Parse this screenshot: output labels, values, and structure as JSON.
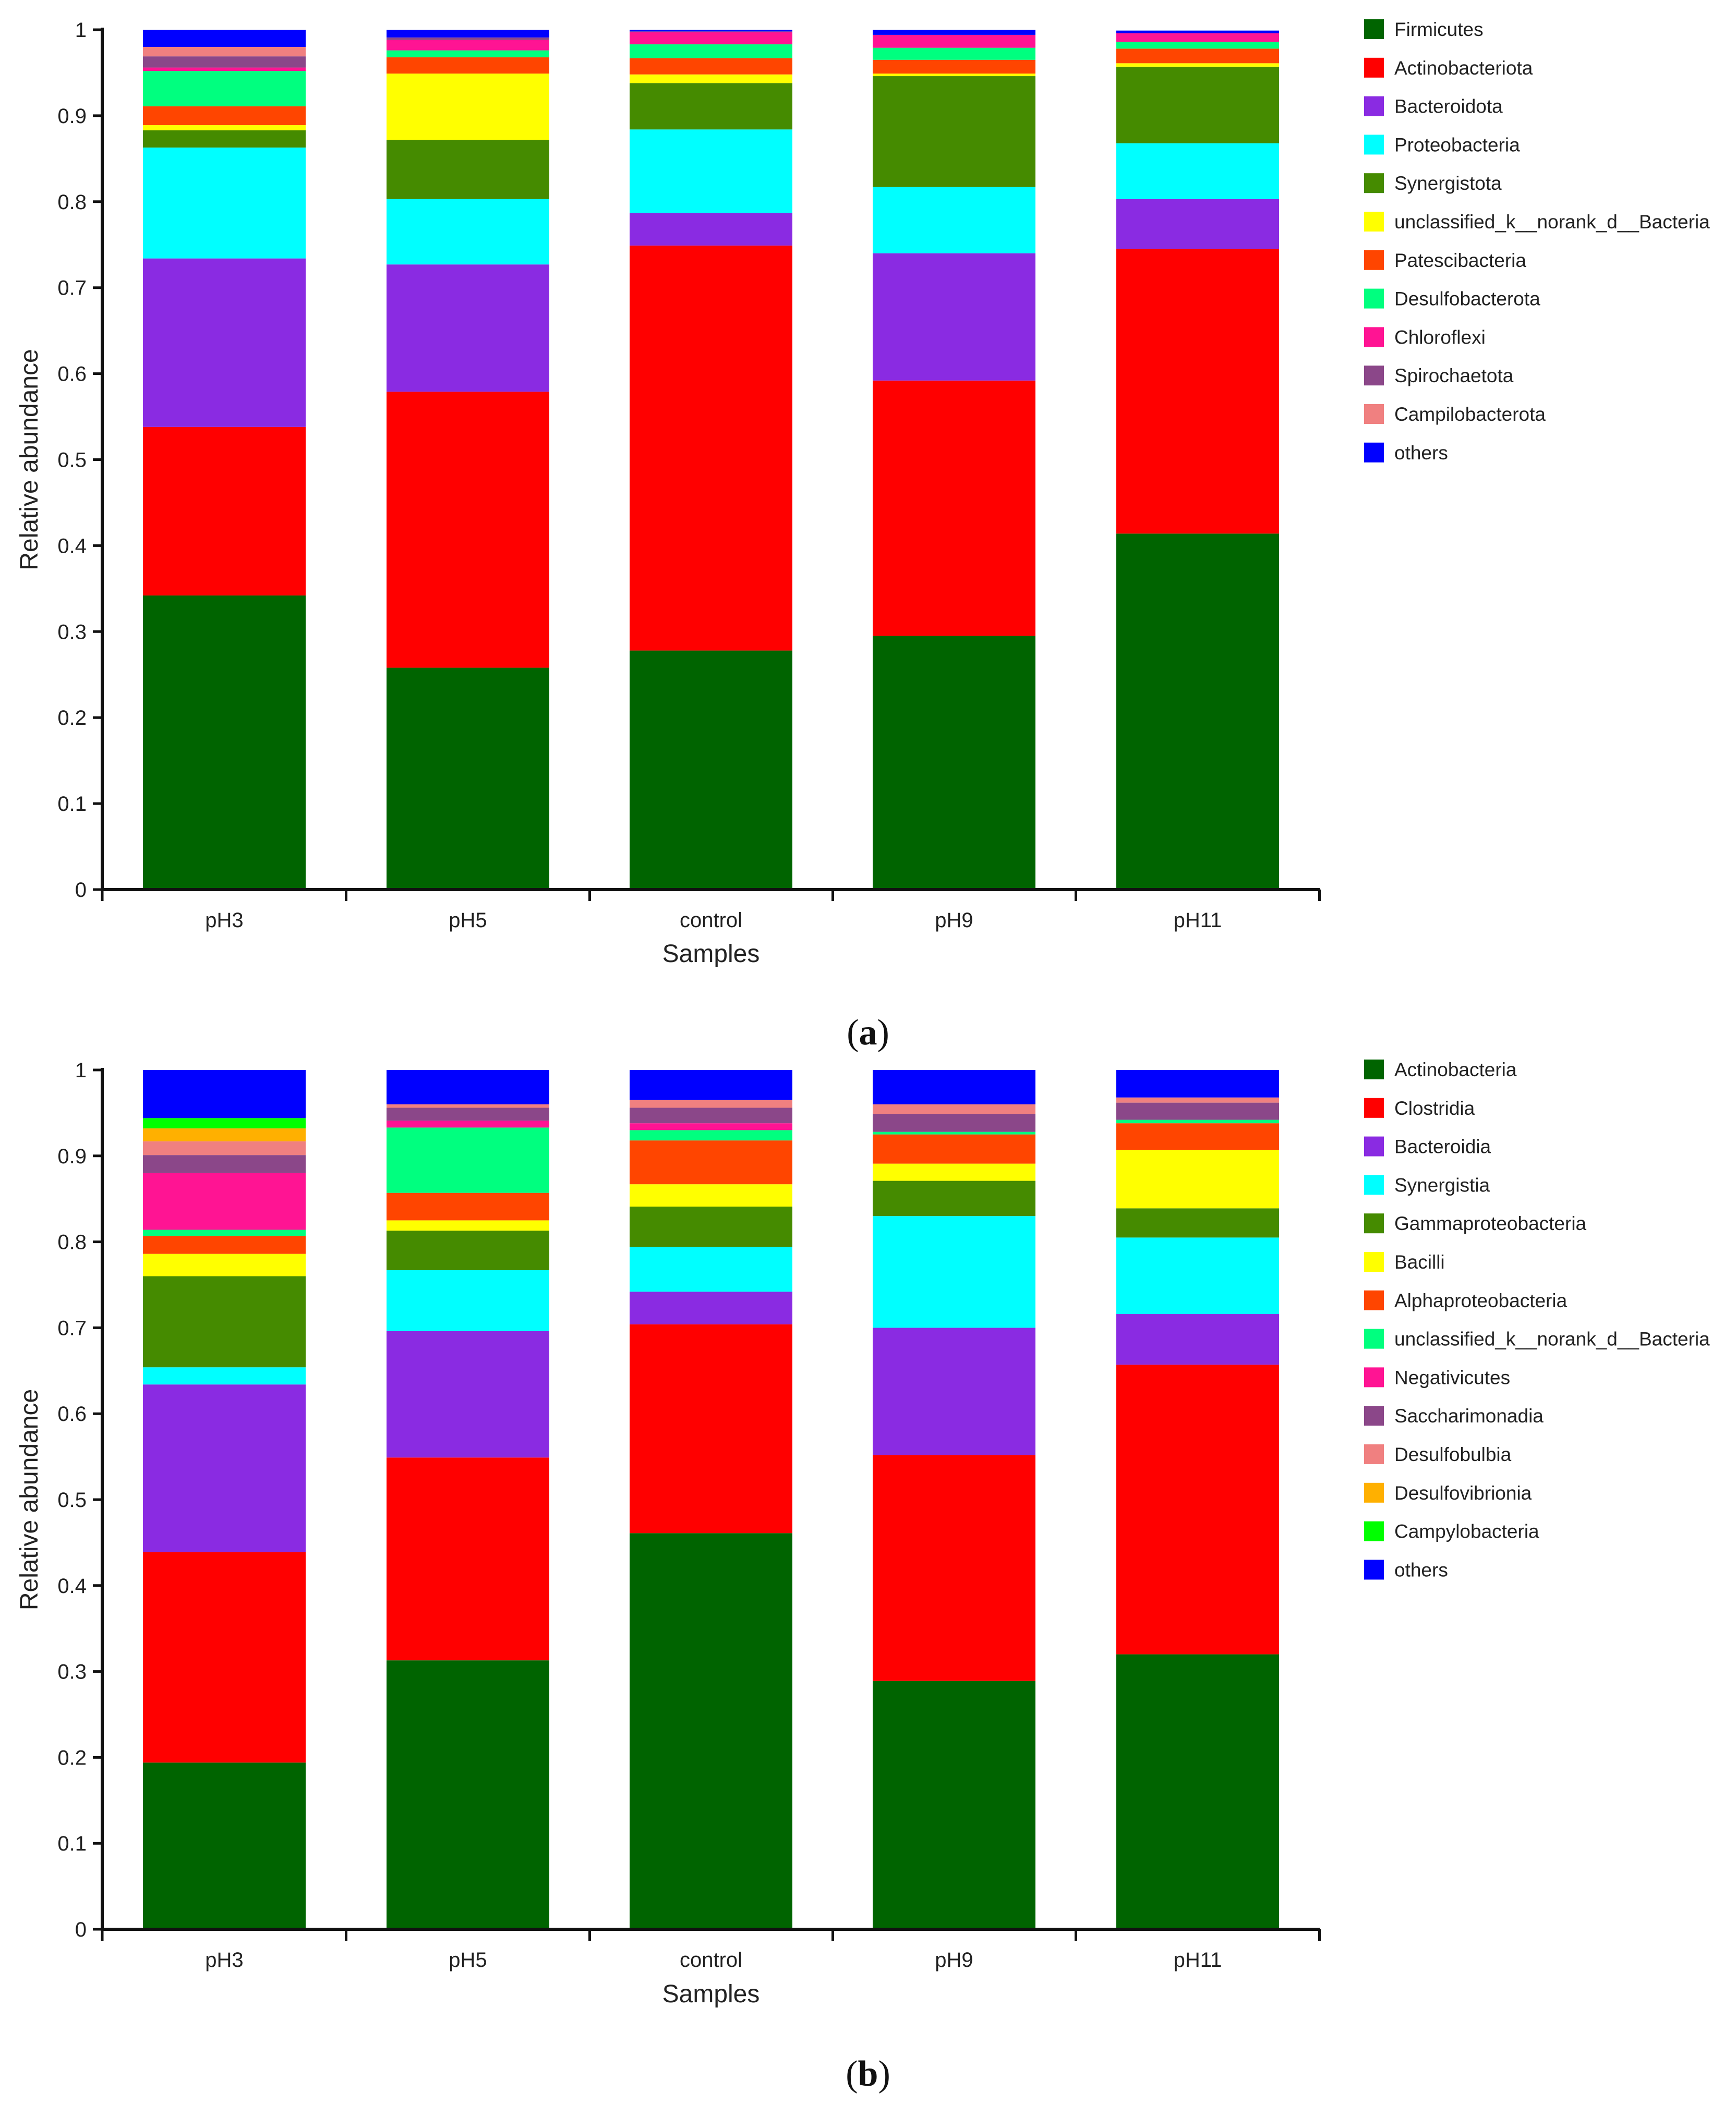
{
  "chart_data": [
    {
      "type": "bar",
      "stacked": true,
      "panel_label": "a",
      "title": "",
      "xlabel": "Samples",
      "ylabel": "Relative abundance",
      "ylim": [
        0,
        1
      ],
      "yticks": [
        "0",
        "0.1",
        "0.2",
        "0.3",
        "0.4",
        "0.5",
        "0.6",
        "0.7",
        "0.8",
        "0.9",
        "1"
      ],
      "categories": [
        "pH3",
        "pH5",
        "control",
        "pH9",
        "pH11"
      ],
      "legend_position": "right",
      "series": [
        {
          "name": "Firmicutes",
          "color": "#006400",
          "values": [
            0.342,
            0.258,
            0.278,
            0.295,
            0.414
          ]
        },
        {
          "name": "Actinobacteriota",
          "color": "#ff0000",
          "values": [
            0.196,
            0.321,
            0.471,
            0.297,
            0.331
          ]
        },
        {
          "name": "Bacteroidota",
          "color": "#8a2be2",
          "values": [
            0.196,
            0.148,
            0.038,
            0.148,
            0.058
          ]
        },
        {
          "name": "Proteobacteria",
          "color": "#00ffff",
          "values": [
            0.129,
            0.076,
            0.097,
            0.077,
            0.065
          ]
        },
        {
          "name": "Synergistota",
          "color": "#458b00",
          "values": [
            0.02,
            0.069,
            0.054,
            0.129,
            0.089
          ]
        },
        {
          "name": "unclassified_k__norank_d__Bacteria",
          "color": "#ffff00",
          "values": [
            0.006,
            0.077,
            0.01,
            0.003,
            0.004
          ]
        },
        {
          "name": "Patescibacteria",
          "color": "#ff4500",
          "values": [
            0.022,
            0.019,
            0.019,
            0.016,
            0.017
          ]
        },
        {
          "name": "Desulfobacterota",
          "color": "#00ff7f",
          "values": [
            0.041,
            0.008,
            0.016,
            0.014,
            0.008
          ]
        },
        {
          "name": "Chloroflexi",
          "color": "#ff1493",
          "values": [
            0.004,
            0.012,
            0.014,
            0.015,
            0.01
          ]
        },
        {
          "name": "Spirochaetota",
          "color": "#8b4789",
          "values": [
            0.013,
            0.003,
            0.001,
            0.0,
            0.0
          ]
        },
        {
          "name": "Campilobacterota",
          "color": "#f08080",
          "values": [
            0.011,
            0.0,
            0.0,
            0.0,
            0.0
          ]
        },
        {
          "name": "others",
          "color": "#0000ff",
          "values": [
            0.02,
            0.009,
            0.002,
            0.006,
            0.003
          ]
        }
      ]
    },
    {
      "type": "bar",
      "stacked": true,
      "panel_label": "b",
      "title": "",
      "xlabel": "Samples",
      "ylabel": "Relative abundance",
      "ylim": [
        0,
        1
      ],
      "yticks": [
        "0",
        "0.1",
        "0.2",
        "0.3",
        "0.4",
        "0.5",
        "0.6",
        "0.7",
        "0.8",
        "0.9",
        "1"
      ],
      "categories": [
        "pH3",
        "pH5",
        "control",
        "pH9",
        "pH11"
      ],
      "legend_position": "right",
      "series": [
        {
          "name": "Actinobacteria",
          "color": "#006400",
          "values": [
            0.194,
            0.313,
            0.461,
            0.289,
            0.32
          ]
        },
        {
          "name": "Clostridia",
          "color": "#ff0000",
          "values": [
            0.245,
            0.236,
            0.243,
            0.263,
            0.337
          ]
        },
        {
          "name": "Bacteroidia",
          "color": "#8a2be2",
          "values": [
            0.195,
            0.147,
            0.038,
            0.148,
            0.059
          ]
        },
        {
          "name": "Synergistia",
          "color": "#00ffff",
          "values": [
            0.02,
            0.071,
            0.052,
            0.13,
            0.089
          ]
        },
        {
          "name": "Gammaproteobacteria",
          "color": "#458b00",
          "values": [
            0.106,
            0.046,
            0.047,
            0.041,
            0.034
          ]
        },
        {
          "name": "Bacilli",
          "color": "#ffff00",
          "values": [
            0.026,
            0.012,
            0.026,
            0.02,
            0.068
          ]
        },
        {
          "name": "Alphaproteobacteria",
          "color": "#ff4500",
          "values": [
            0.021,
            0.032,
            0.051,
            0.034,
            0.031
          ]
        },
        {
          "name": "unclassified_k__norank_d__Bacteria",
          "color": "#00ff7f",
          "values": [
            0.007,
            0.076,
            0.012,
            0.003,
            0.004
          ]
        },
        {
          "name": "Negativicutes",
          "color": "#ff1493",
          "values": [
            0.066,
            0.008,
            0.008,
            0.0,
            0.0
          ]
        },
        {
          "name": "Saccharimonadia",
          "color": "#8b4789",
          "values": [
            0.021,
            0.015,
            0.018,
            0.021,
            0.02
          ]
        },
        {
          "name": "Desulfobulbia",
          "color": "#f08080",
          "values": [
            0.016,
            0.004,
            0.009,
            0.011,
            0.006
          ]
        },
        {
          "name": "Desulfovibrionia",
          "color": "#ffb000",
          "values": [
            0.015,
            0.0,
            0.0,
            0.0,
            0.0
          ]
        },
        {
          "name": "Campylobacteria",
          "color": "#00ff00",
          "values": [
            0.012,
            0.0,
            0.0,
            0.0,
            0.0
          ]
        },
        {
          "name": "others",
          "color": "#0000ff",
          "values": [
            0.056,
            0.04,
            0.035,
            0.04,
            0.032
          ]
        }
      ]
    }
  ]
}
